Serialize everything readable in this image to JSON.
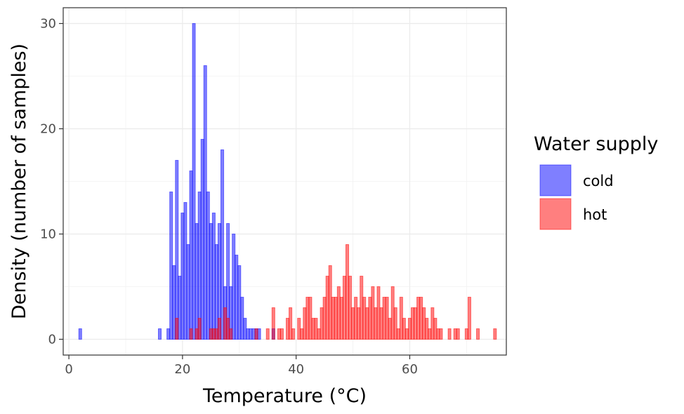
{
  "chart_data": {
    "type": "bar",
    "xlabel": "Temperature (°C)",
    "ylabel": "Density (number of samples)",
    "xlim": [
      -1,
      77
    ],
    "ylim": [
      -1.5,
      31.5
    ],
    "xticks": [
      0,
      20,
      40,
      60
    ],
    "yticks": [
      0,
      10,
      20,
      30
    ],
    "bin_width": 0.5,
    "grid": true,
    "legend": {
      "title": "Water supply",
      "position": "right"
    },
    "series": [
      {
        "name": "cold",
        "color": "#0000ff",
        "x": [
          2,
          16,
          17.5,
          18,
          18.5,
          19,
          19.5,
          20,
          20.5,
          21,
          21.5,
          22,
          22.5,
          23,
          23.5,
          24,
          24.5,
          25,
          25.5,
          26,
          26.5,
          27,
          27.5,
          28,
          28.5,
          29,
          29.5,
          30,
          30.5,
          31,
          31.5,
          32,
          32.5,
          33,
          33.5,
          36
        ],
        "values": [
          1,
          1,
          1,
          14,
          7,
          17,
          6,
          12,
          13,
          9,
          16,
          30,
          11,
          14,
          19,
          26,
          14,
          11,
          12,
          9,
          11,
          18,
          5,
          11,
          5,
          10,
          8,
          7,
          4,
          2,
          1,
          1,
          1,
          1,
          1,
          1
        ]
      },
      {
        "name": "hot",
        "color": "#ff0000",
        "x": [
          19,
          21.5,
          22.5,
          23,
          25,
          25.5,
          26,
          26.5,
          27.5,
          28,
          28.5,
          33,
          35,
          36,
          37,
          37.5,
          38.5,
          39,
          39.5,
          40.5,
          41,
          41.5,
          42,
          42.5,
          43,
          43.5,
          44,
          44.5,
          45,
          45.5,
          46,
          46.5,
          47,
          47.5,
          48,
          48.5,
          49,
          49.5,
          50,
          50.5,
          51,
          51.5,
          52,
          52.5,
          53,
          53.5,
          54,
          54.5,
          55,
          55.5,
          56,
          56.5,
          57,
          57.5,
          58,
          58.5,
          59,
          59.5,
          60,
          60.5,
          61,
          61.5,
          62,
          62.5,
          63,
          63.5,
          64,
          64.5,
          65,
          65.5,
          67,
          68,
          68.5,
          70,
          70.5,
          72,
          75
        ],
        "values": [
          2,
          1,
          1,
          2,
          1,
          1,
          1,
          2,
          3,
          2,
          1,
          1,
          1,
          3,
          1,
          1,
          2,
          3,
          1,
          2,
          1,
          3,
          4,
          4,
          2,
          2,
          1,
          3,
          4,
          6,
          7,
          4,
          4,
          5,
          4,
          6,
          9,
          6,
          3,
          4,
          3,
          6,
          4,
          3,
          4,
          5,
          3,
          5,
          3,
          4,
          4,
          2,
          5,
          3,
          1,
          4,
          2,
          1,
          2,
          3,
          3,
          4,
          4,
          3,
          2,
          1,
          3,
          2,
          1,
          1,
          1,
          1,
          1,
          1,
          4,
          1,
          1
        ]
      }
    ]
  }
}
